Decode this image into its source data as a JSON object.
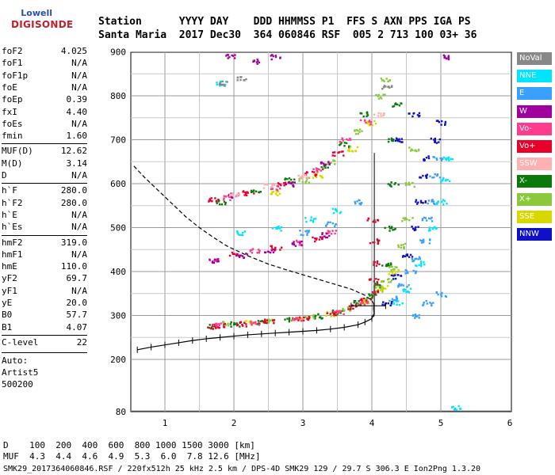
{
  "logo": {
    "line1": "Lowell",
    "line2": "DIGISONDE"
  },
  "header": {
    "labels": "Station      YYYY DAY    DDD HHMMSS P1  FFS S AXN PPS IGA PS",
    "values": "Santa Maria  2017 Dec30  364 060846 RSF  005 2 713 100 03+ 36"
  },
  "params": [
    {
      "name": "foF2",
      "value": "4.025"
    },
    {
      "name": "foF1",
      "value": "N/A"
    },
    {
      "name": "foF1p",
      "value": "N/A"
    },
    {
      "name": "foE",
      "value": "N/A"
    },
    {
      "name": "foEp",
      "value": "0.39"
    },
    {
      "name": "fxI",
      "value": "4.40"
    },
    {
      "name": "foEs",
      "value": "N/A"
    },
    {
      "name": "fmin",
      "value": "1.60"
    },
    {
      "name": "MUF(D)",
      "value": "12.62"
    },
    {
      "name": "M(D)",
      "value": "3.14"
    },
    {
      "name": "D",
      "value": "N/A"
    },
    {
      "name": "h`F",
      "value": "280.0"
    },
    {
      "name": "h`F2",
      "value": "280.0"
    },
    {
      "name": "h`E",
      "value": "N/A"
    },
    {
      "name": "h`Es",
      "value": "N/A"
    },
    {
      "name": "hmF2",
      "value": "319.0"
    },
    {
      "name": "hmF1",
      "value": "N/A"
    },
    {
      "name": "hmE",
      "value": "110.0"
    },
    {
      "name": "yF2",
      "value": "69.7"
    },
    {
      "name": "yF1",
      "value": "N/A"
    },
    {
      "name": "yE",
      "value": "20.0"
    },
    {
      "name": "B0",
      "value": "57.7"
    },
    {
      "name": "B1",
      "value": "4.07"
    },
    {
      "name": "C-level",
      "value": "22"
    }
  ],
  "auto": {
    "line1": "Auto:",
    "line2": "Artist5",
    "line3": "500200"
  },
  "legend": [
    {
      "label": "NoVal",
      "color": "#888888"
    },
    {
      "label": "NNE",
      "color": "#00e5ff"
    },
    {
      "label": "E",
      "color": "#3aa0ff"
    },
    {
      "label": "W",
      "color": "#a000a0"
    },
    {
      "label": "Vo-",
      "color": "#ff3c8c"
    },
    {
      "label": "Vo+",
      "color": "#e8002a"
    },
    {
      "label": "SSW",
      "color": "#ffb0b0"
    },
    {
      "label": "X-",
      "color": "#0a7a0a"
    },
    {
      "label": "X+",
      "color": "#8ac83c"
    },
    {
      "label": "SSE",
      "color": "#d8d800"
    },
    {
      "label": "NNW",
      "color": "#1010c8"
    }
  ],
  "bottom": {
    "line1": "D    100  200  400  600  800 1000 1500 3000 [km]",
    "line2": "MUF  4.3  4.4  4.6  4.9  5.3  6.0  7.8 12.6 [MHz]",
    "line3": "SMK29_2017364060846.RSF / 220fx512h 25 kHz 2.5 km / DPS-4D SMK29 129 / 29.7 S 306.3 E Ion2Png 1.3.20"
  },
  "chart_data": {
    "type": "scatter",
    "x_ticks": [
      1,
      2,
      3,
      4,
      5,
      6
    ],
    "y_ticks": [
      80,
      200,
      300,
      400,
      500,
      600,
      700,
      800,
      900
    ],
    "xlim": [
      0.55,
      6.2
    ],
    "ylim": [
      80,
      900
    ],
    "grid": true,
    "foF2_marker": 4.025,
    "series": [
      {
        "name": "X-",
        "color": "#0a7a0a",
        "points": [
          [
            1.7,
            278
          ],
          [
            2.0,
            282
          ],
          [
            2.4,
            287
          ],
          [
            2.8,
            292
          ],
          [
            3.2,
            300
          ],
          [
            3.5,
            310
          ],
          [
            3.8,
            330
          ],
          [
            4.0,
            345
          ],
          [
            4.1,
            370
          ],
          [
            4.2,
            420
          ],
          [
            4.25,
            500
          ],
          [
            4.3,
            600
          ],
          [
            4.3,
            700
          ],
          [
            4.35,
            780
          ],
          [
            1.8,
            560
          ],
          [
            2.3,
            585
          ],
          [
            2.8,
            610
          ],
          [
            3.3,
            640
          ],
          [
            3.6,
            690
          ],
          [
            3.9,
            760
          ]
        ]
      },
      {
        "name": "X+",
        "color": "#8ac83c",
        "points": [
          [
            1.9,
            284
          ],
          [
            2.5,
            290
          ],
          [
            3.1,
            298
          ],
          [
            3.6,
            316
          ],
          [
            3.9,
            336
          ],
          [
            4.1,
            360
          ],
          [
            4.2,
            380
          ],
          [
            4.3,
            410
          ],
          [
            4.4,
            460
          ],
          [
            4.5,
            520
          ],
          [
            4.55,
            600
          ],
          [
            4.6,
            680
          ],
          [
            3.0,
            610
          ],
          [
            3.4,
            650
          ],
          [
            3.8,
            720
          ],
          [
            4.1,
            800
          ],
          [
            4.2,
            840
          ]
        ]
      },
      {
        "name": "SSE",
        "color": "#d8d800",
        "points": [
          [
            2.2,
            286
          ],
          [
            2.9,
            294
          ],
          [
            3.4,
            305
          ],
          [
            3.9,
            330
          ],
          [
            4.15,
            365
          ],
          [
            4.3,
            400
          ],
          [
            2.6,
            580
          ],
          [
            3.2,
            620
          ],
          [
            3.7,
            680
          ],
          [
            4.0,
            740
          ]
        ]
      },
      {
        "name": "Vo+",
        "color": "#e8002a",
        "points": [
          [
            1.65,
            276
          ],
          [
            1.8,
            278
          ],
          [
            2.1,
            282
          ],
          [
            2.5,
            288
          ],
          [
            3.0,
            295
          ],
          [
            3.4,
            306
          ],
          [
            3.7,
            320
          ],
          [
            3.9,
            336
          ],
          [
            4.0,
            355
          ],
          [
            4.02,
            380
          ],
          [
            4.02,
            420
          ],
          [
            4.03,
            470
          ],
          [
            4.0,
            520
          ],
          [
            1.7,
            565
          ],
          [
            2.2,
            580
          ],
          [
            2.7,
            600
          ],
          [
            3.1,
            625
          ],
          [
            3.5,
            670
          ],
          [
            2.0,
            440
          ],
          [
            2.6,
            455
          ],
          [
            3.2,
            475
          ]
        ]
      },
      {
        "name": "Vo-",
        "color": "#ff3c8c",
        "points": [
          [
            1.75,
            280
          ],
          [
            2.3,
            286
          ],
          [
            2.9,
            292
          ],
          [
            3.5,
            310
          ],
          [
            3.85,
            330
          ],
          [
            1.9,
            570
          ],
          [
            2.6,
            592
          ],
          [
            3.2,
            632
          ],
          [
            3.6,
            700
          ],
          [
            3.9,
            742
          ],
          [
            1.7,
            430
          ],
          [
            2.3,
            448
          ],
          [
            2.9,
            468
          ],
          [
            3.4,
            490
          ]
        ]
      },
      {
        "name": "W",
        "color": "#a000a0",
        "points": [
          [
            1.7,
            425
          ],
          [
            2.1,
            438
          ],
          [
            2.5,
            450
          ],
          [
            2.9,
            465
          ],
          [
            3.3,
            485
          ],
          [
            2.0,
            575
          ],
          [
            2.8,
            600
          ],
          [
            3.3,
            650
          ],
          [
            1.95,
            890
          ],
          [
            2.3,
            880
          ],
          [
            2.6,
            890
          ],
          [
            5.1,
            890
          ]
        ]
      },
      {
        "name": "E",
        "color": "#3aa0ff",
        "points": [
          [
            4.3,
            340
          ],
          [
            4.45,
            370
          ],
          [
            4.55,
            400
          ],
          [
            4.65,
            430
          ],
          [
            4.75,
            470
          ],
          [
            4.8,
            520
          ],
          [
            4.85,
            560
          ],
          [
            4.9,
            620
          ],
          [
            4.95,
            660
          ],
          [
            4.6,
            300
          ],
          [
            4.8,
            330
          ],
          [
            5.0,
            350
          ],
          [
            3.0,
            490
          ],
          [
            3.4,
            510
          ],
          [
            3.8,
            560
          ]
        ]
      },
      {
        "name": "NNE",
        "color": "#00e5ff",
        "points": [
          [
            4.35,
            330
          ],
          [
            4.5,
            360
          ],
          [
            4.7,
            420
          ],
          [
            4.85,
            500
          ],
          [
            5.0,
            560
          ],
          [
            5.05,
            610
          ],
          [
            5.1,
            660
          ],
          [
            2.1,
            490
          ],
          [
            2.6,
            500
          ],
          [
            3.1,
            520
          ],
          [
            3.5,
            540
          ],
          [
            1.8,
            830
          ],
          [
            5.2,
            90
          ]
        ]
      },
      {
        "name": "NNW",
        "color": "#1010c8",
        "points": [
          [
            4.2,
            330
          ],
          [
            4.35,
            390
          ],
          [
            4.5,
            440
          ],
          [
            4.6,
            500
          ],
          [
            4.7,
            560
          ],
          [
            4.75,
            620
          ],
          [
            4.8,
            660
          ],
          [
            4.9,
            700
          ],
          [
            5.0,
            740
          ],
          [
            4.6,
            760
          ],
          [
            4.4,
            700
          ]
        ]
      },
      {
        "name": "SSW",
        "color": "#ffb0b0",
        "points": [
          [
            2.0,
            578
          ],
          [
            2.5,
            596
          ],
          [
            3.0,
            620
          ],
          [
            4.1,
            760
          ]
        ]
      },
      {
        "name": "NoVal",
        "color": "#888888",
        "points": [
          [
            1.85,
            830
          ],
          [
            2.1,
            840
          ],
          [
            4.2,
            820
          ]
        ]
      }
    ],
    "trace": [
      [
        0.6,
        222
      ],
      [
        0.8,
        228
      ],
      [
        1.0,
        233
      ],
      [
        1.2,
        238
      ],
      [
        1.4,
        243
      ],
      [
        1.6,
        247
      ],
      [
        1.8,
        250
      ],
      [
        2.0,
        253
      ],
      [
        2.2,
        256
      ],
      [
        2.4,
        258
      ],
      [
        2.6,
        260
      ],
      [
        2.8,
        262
      ],
      [
        3.0,
        264
      ],
      [
        3.2,
        266
      ],
      [
        3.4,
        269
      ],
      [
        3.6,
        273
      ],
      [
        3.8,
        279
      ],
      [
        3.9,
        285
      ],
      [
        4.0,
        293
      ],
      [
        4.03,
        304
      ],
      [
        4.025,
        319
      ]
    ],
    "profile": [
      [
        0.55,
        640
      ],
      [
        0.7,
        615
      ],
      [
        0.9,
        585
      ],
      [
        1.1,
        555
      ],
      [
        1.3,
        525
      ],
      [
        1.5,
        500
      ],
      [
        1.7,
        478
      ],
      [
        1.9,
        458
      ],
      [
        2.2,
        436
      ],
      [
        2.5,
        417
      ],
      [
        2.8,
        402
      ],
      [
        3.1,
        388
      ],
      [
        3.4,
        374
      ],
      [
        3.7,
        360
      ],
      [
        3.9,
        346
      ],
      [
        4.0,
        334
      ],
      [
        4.03,
        325
      ]
    ]
  }
}
